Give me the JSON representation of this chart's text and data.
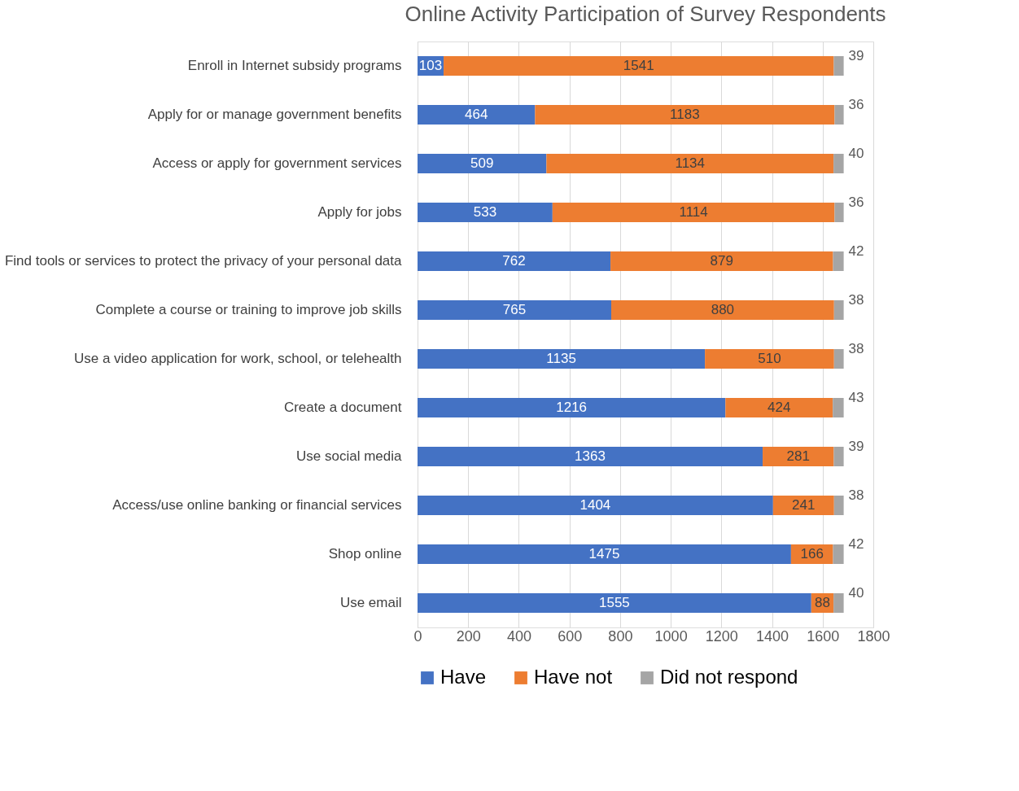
{
  "chart_data": {
    "type": "bar",
    "orientation": "horizontal",
    "stacked": true,
    "title": "Online Activity Participation of Survey Respondents",
    "categories": [
      "Enroll in Internet subsidy programs",
      "Apply for or manage government benefits",
      "Access or apply for government services",
      "Apply for jobs",
      "Find tools or services to protect the privacy of your personal data",
      "Complete a course or training to improve job skills",
      "Use a video application for work, school, or telehealth",
      "Create a document",
      "Use social media",
      "Access/use online banking or financial services",
      "Shop online",
      "Use email"
    ],
    "series": [
      {
        "name": "Have",
        "color": "#4472c4",
        "values": [
          103,
          464,
          509,
          533,
          762,
          765,
          1135,
          1216,
          1363,
          1404,
          1475,
          1555
        ]
      },
      {
        "name": "Have not",
        "color": "#ed7d31",
        "values": [
          1541,
          1183,
          1134,
          1114,
          879,
          880,
          510,
          424,
          281,
          241,
          166,
          88
        ]
      },
      {
        "name": "Did not respond",
        "color": "#a5a5a5",
        "values": [
          39,
          36,
          40,
          36,
          42,
          38,
          38,
          43,
          39,
          38,
          42,
          40
        ]
      }
    ],
    "xlim": [
      0,
      1800
    ],
    "xticks": [
      0,
      200,
      400,
      600,
      800,
      1000,
      1200,
      1400,
      1600,
      1800
    ],
    "grid": "x",
    "legend": "bottom",
    "data_labels": true
  }
}
